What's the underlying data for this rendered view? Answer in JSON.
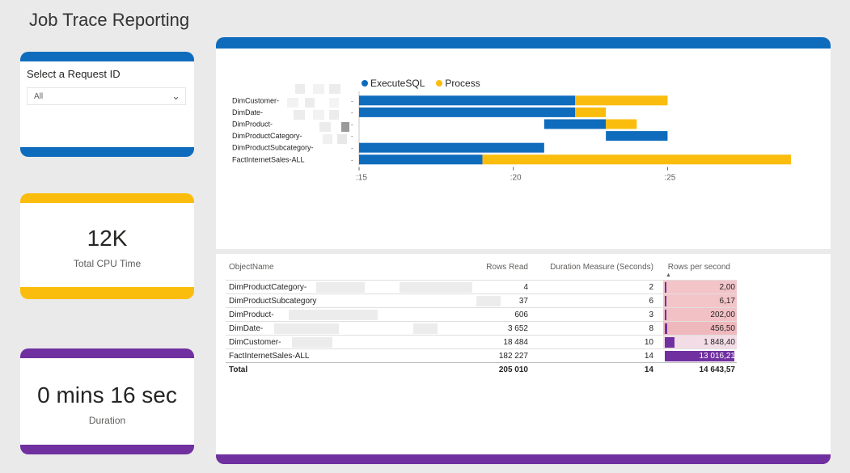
{
  "title": "Job Trace Reporting",
  "slicer": {
    "label": "Select a Request ID",
    "value": "All"
  },
  "kpi_cpu": {
    "value": "12K",
    "label": "Total CPU Time"
  },
  "kpi_duration": {
    "value": "0 mins 16 sec",
    "label": "Duration"
  },
  "colors": {
    "execute": "#0f6cbd",
    "process": "#fbbd0d",
    "purple": "#7030a0"
  },
  "chart_data": {
    "type": "bar",
    "orientation": "horizontal-gantt",
    "title": "",
    "legend": [
      "ExecuteSQL",
      "Process"
    ],
    "legend_position": "top",
    "categories": [
      "DimCustomer-",
      "DimDate-",
      "DimProduct-",
      "DimProductCategory-",
      "DimProductSubcategory-",
      "FactInternetSales-ALL"
    ],
    "series": [
      {
        "name": "ExecuteSQL",
        "ranges": [
          [
            15,
            22
          ],
          [
            15,
            22
          ],
          [
            21,
            23
          ],
          [
            23,
            25
          ],
          [
            15,
            21
          ],
          [
            15,
            19
          ]
        ]
      },
      {
        "name": "Process",
        "ranges": [
          [
            22,
            25
          ],
          [
            22,
            23
          ],
          [
            23,
            24
          ],
          null,
          null,
          [
            19,
            29
          ]
        ]
      }
    ],
    "xlim": [
      15,
      29
    ],
    "xticks": [
      ":15",
      ":20",
      ":25"
    ]
  },
  "table": {
    "headers": [
      "ObjectName",
      "Rows Read",
      "Duration Measure (Seconds)",
      "Rows per second"
    ],
    "rows": [
      {
        "name": "DimProductCategory-",
        "rows_read": "4",
        "duration": "2",
        "rps": "2,00",
        "rps_value": 2.0
      },
      {
        "name": "DimProductSubcategory",
        "rows_read": "37",
        "duration": "6",
        "rps": "6,17",
        "rps_value": 6.17
      },
      {
        "name": "DimProduct-",
        "rows_read": "606",
        "duration": "3",
        "rps": "202,00",
        "rps_value": 202.0
      },
      {
        "name": "DimDate-",
        "rows_read": "3 652",
        "duration": "8",
        "rps": "456,50",
        "rps_value": 456.5
      },
      {
        "name": "DimCustomer-",
        "rows_read": "18 484",
        "duration": "10",
        "rps": "1 848,40",
        "rps_value": 1848.4
      },
      {
        "name": "FactInternetSales-ALL",
        "rows_read": "182 227",
        "duration": "14",
        "rps": "13 016,21",
        "rps_value": 13016.21
      }
    ],
    "total": {
      "name": "Total",
      "rows_read": "205 010",
      "duration": "14",
      "rps": "14 643,57"
    }
  }
}
